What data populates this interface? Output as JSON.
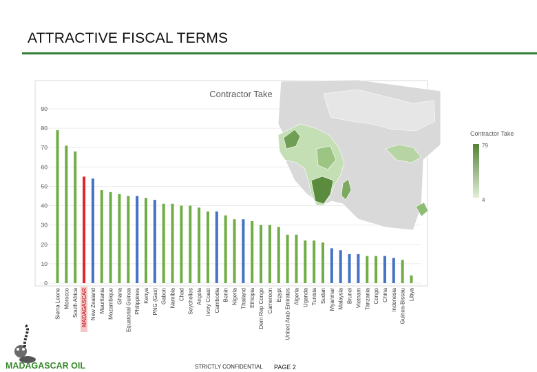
{
  "slide": {
    "title": "ATTRACTIVE FISCAL TERMS"
  },
  "footer": {
    "confidential": "STRICTLY CONFIDENTIAL",
    "page": "PAGE 2",
    "logo_text": "MADAGASCAR OIL"
  },
  "colors": {
    "green": "#70ad47",
    "blue": "#4472c4",
    "red": "#e3242b",
    "rule": "#2e7d32"
  },
  "legend": {
    "title": "Contractor Take",
    "max": "79",
    "min": "4"
  },
  "chart_data": {
    "type": "bar",
    "title": "Contractor Take",
    "ylim": [
      0,
      90
    ],
    "yticks": [
      "0",
      "10",
      "20",
      "30",
      "40",
      "50",
      "60",
      "70",
      "80",
      "90"
    ],
    "categories": [
      "Sierra Leone",
      "Morocco",
      "South Africa",
      "MADAGASCAR",
      "New Zealand",
      "Mauritania",
      "Mozambique",
      "Ghana",
      "Equatorial Guinea",
      "Philippines",
      "Kenya",
      "PNG (Gas)",
      "Gabon",
      "Namibia",
      "Chad",
      "Seychelles",
      "Angola",
      "Ivory Coast",
      "Cambodia",
      "Benin",
      "Nigeria",
      "Thailand",
      "Ethiopia",
      "Dem Rep Congo",
      "Cameroon",
      "Egypt",
      "United Arab Emirates",
      "Algeria",
      "Uganda",
      "Tunisia",
      "Sudan",
      "Myanmar",
      "Malaysia",
      "Brunei",
      "Vietnam",
      "Tanzania",
      "Congo",
      "China",
      "Indonesia",
      "Guinea-Bissau",
      "Libya"
    ],
    "values": [
      79,
      71,
      68,
      55,
      54,
      48,
      47,
      46,
      45,
      45,
      44,
      43,
      41,
      41,
      40,
      40,
      39,
      37,
      37,
      35,
      33,
      33,
      32,
      30,
      30,
      29,
      25,
      25,
      22,
      22,
      21,
      18,
      17,
      15,
      15,
      14,
      14,
      14,
      13,
      12,
      4
    ],
    "bar_colors": [
      "green",
      "green",
      "green",
      "red",
      "blue",
      "green",
      "green",
      "green",
      "green",
      "blue",
      "green",
      "blue",
      "green",
      "green",
      "green",
      "green",
      "green",
      "green",
      "blue",
      "green",
      "green",
      "blue",
      "green",
      "green",
      "green",
      "green",
      "green",
      "green",
      "green",
      "green",
      "green",
      "blue",
      "blue",
      "blue",
      "blue",
      "green",
      "green",
      "blue",
      "blue",
      "green",
      "green"
    ],
    "highlight": "MADAGASCAR"
  }
}
